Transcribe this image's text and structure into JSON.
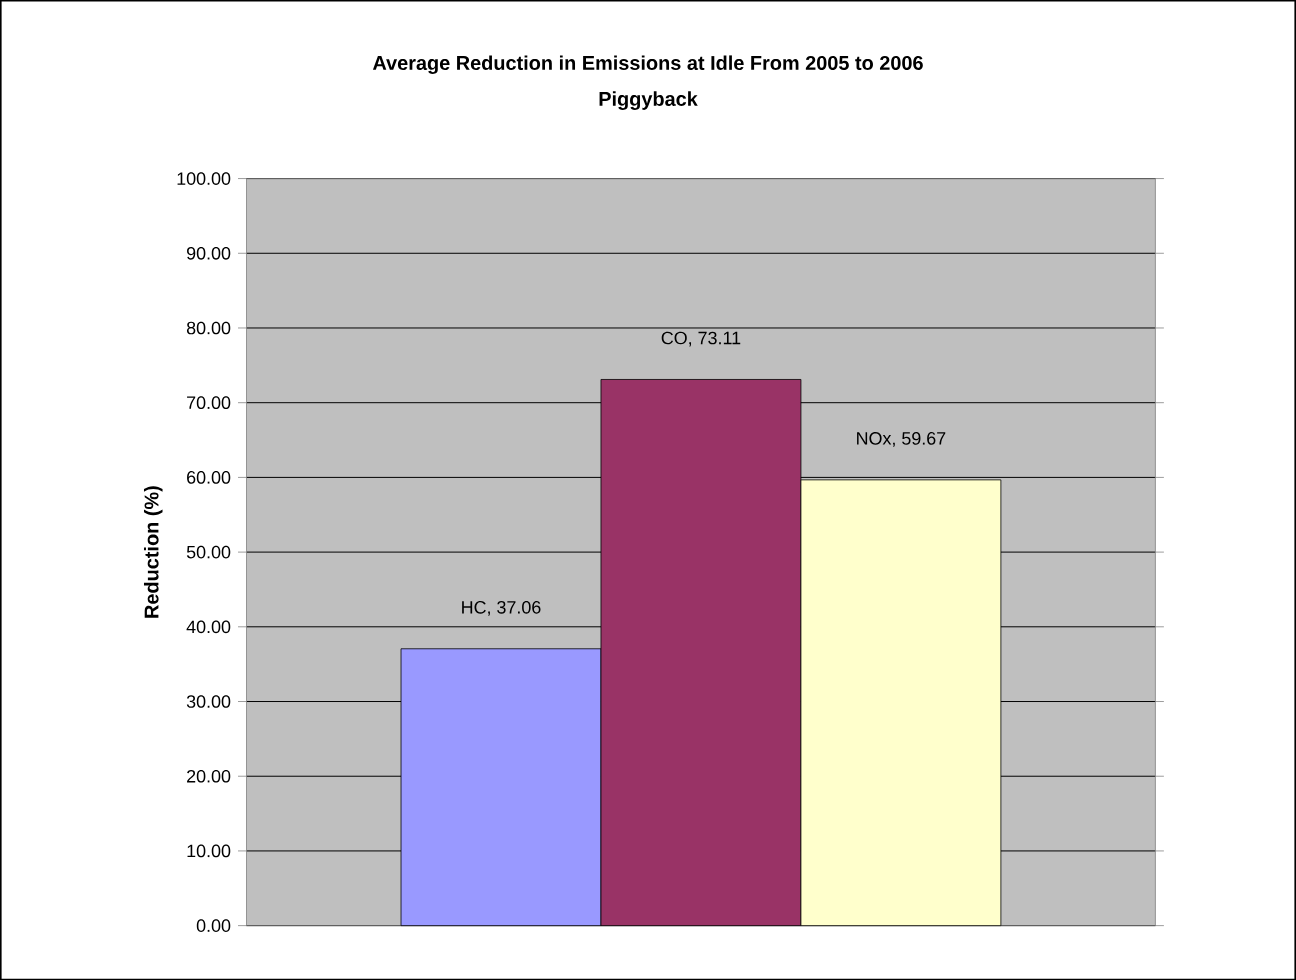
{
  "chart_data": {
    "type": "bar",
    "title": "Average Reduction in Emissions at Idle From 2005 to 2006",
    "subtitle": "Piggyback",
    "ylabel": "Reduction (%)",
    "categories": [
      null
    ],
    "series": [
      {
        "name": "HC",
        "color": "#9999ff",
        "values": [
          37.06
        ],
        "value_labels": [
          ", 37.06"
        ]
      },
      {
        "name": "CO",
        "color": "#993366",
        "values": [
          73.11
        ],
        "value_labels": [
          ", 73.11"
        ]
      },
      {
        "name": "NOx",
        "color": "#ffffcc",
        "values": [
          59.67
        ],
        "value_labels": [
          ", 59.67"
        ]
      }
    ],
    "ylim": [
      0,
      100
    ],
    "yticks": [
      {
        "value": 0,
        "label": "0.00"
      },
      {
        "value": 10,
        "label": "10.00"
      },
      {
        "value": 20,
        "label": "20.00"
      },
      {
        "value": 30,
        "label": "30.00"
      },
      {
        "value": 40,
        "label": "40.00"
      },
      {
        "value": 50,
        "label": "50.00"
      },
      {
        "value": 60,
        "label": "60.00"
      },
      {
        "value": 70,
        "label": "70.00"
      },
      {
        "value": 80,
        "label": "80.00"
      },
      {
        "value": 90,
        "label": "90.00"
      },
      {
        "value": 100,
        "label": "100.00"
      }
    ],
    "grid": "y"
  }
}
